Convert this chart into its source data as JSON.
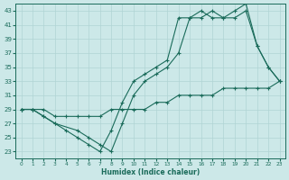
{
  "xlabel": "Humidex (Indice chaleur)",
  "bg_color": "#cce8e8",
  "line_color": "#1a6b5a",
  "grid_color": "#b0d4d4",
  "xlim": [
    -0.5,
    23.5
  ],
  "ylim": [
    22,
    44
  ],
  "xticks": [
    0,
    1,
    2,
    3,
    4,
    5,
    6,
    7,
    8,
    9,
    10,
    11,
    12,
    13,
    14,
    15,
    16,
    17,
    18,
    19,
    20,
    21,
    22,
    23
  ],
  "yticks": [
    23,
    25,
    27,
    29,
    31,
    33,
    35,
    37,
    39,
    41,
    43
  ],
  "series1_x": [
    0,
    1,
    2,
    3,
    4,
    5,
    6,
    7,
    8,
    9,
    10,
    11,
    12,
    13,
    14,
    15,
    16,
    17,
    18,
    19,
    20,
    21,
    22,
    23
  ],
  "series1_y": [
    29,
    29,
    28,
    27,
    26,
    25,
    24,
    23,
    26,
    30,
    33,
    34,
    35,
    36,
    42,
    42,
    43,
    42,
    42,
    43,
    44,
    38,
    35,
    33
  ],
  "series2_x": [
    0,
    1,
    2,
    3,
    5,
    6,
    7,
    8,
    9,
    10,
    11,
    12,
    13,
    14,
    15,
    16,
    17,
    18,
    19,
    20,
    21,
    22,
    23
  ],
  "series2_y": [
    29,
    29,
    28,
    27,
    26,
    25,
    24,
    23,
    27,
    31,
    33,
    34,
    35,
    37,
    42,
    42,
    43,
    42,
    42,
    43,
    38,
    35,
    33
  ],
  "series3_x": [
    0,
    1,
    2,
    3,
    4,
    5,
    6,
    7,
    8,
    9,
    10,
    11,
    12,
    13,
    14,
    15,
    16,
    17,
    18,
    19,
    20,
    21,
    22,
    23
  ],
  "series3_y": [
    29,
    29,
    29,
    28,
    28,
    28,
    28,
    28,
    29,
    29,
    29,
    29,
    30,
    30,
    31,
    31,
    31,
    31,
    32,
    32,
    32,
    32,
    32,
    33
  ]
}
